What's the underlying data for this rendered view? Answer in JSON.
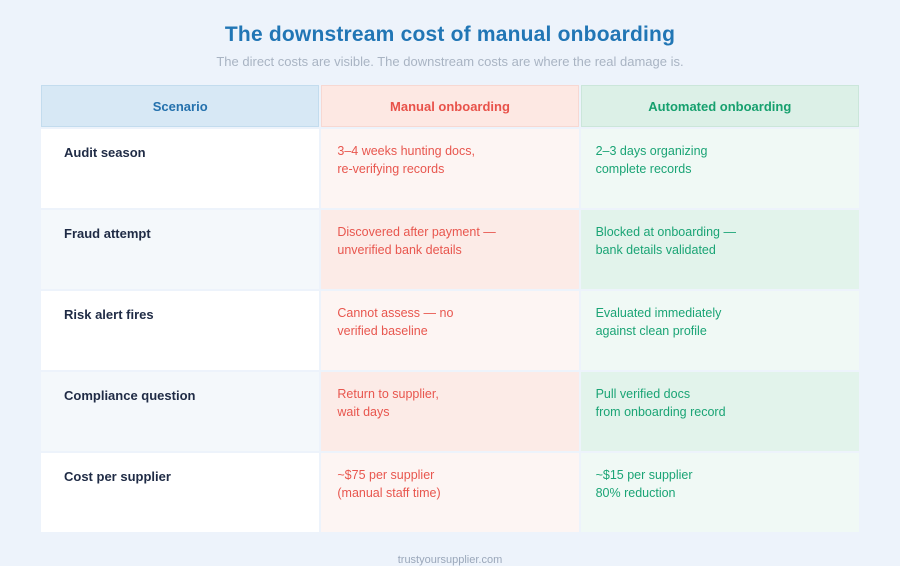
{
  "chart_data": {
    "type": "table",
    "title": "The downstream cost of manual onboarding",
    "subtitle": "The direct costs are visible. The downstream costs are where the real damage is.",
    "columns": [
      "Scenario",
      "Manual onboarding",
      "Automated onboarding"
    ],
    "rows": [
      {
        "scenario": "Audit season",
        "manual": [
          "3–4 weeks hunting docs,",
          "re-verifying records"
        ],
        "automated": [
          "2–3 days organizing",
          "complete records"
        ]
      },
      {
        "scenario": "Fraud attempt",
        "manual": [
          "Discovered after payment —",
          "unverified bank details"
        ],
        "automated": [
          "Blocked at onboarding —",
          "bank details validated"
        ]
      },
      {
        "scenario": "Risk alert fires",
        "manual": [
          "Cannot assess — no",
          "verified baseline"
        ],
        "automated": [
          "Evaluated immediately",
          "against clean profile"
        ]
      },
      {
        "scenario": "Compliance question",
        "manual": [
          "Return to supplier,",
          "wait days"
        ],
        "automated": [
          "Pull verified docs",
          "from onboarding record"
        ]
      },
      {
        "scenario": "Cost per supplier",
        "manual": [
          "~$75 per supplier",
          "(manual staff time)"
        ],
        "automated": [
          "~$15 per supplier",
          "80% reduction"
        ]
      }
    ],
    "layout": {
      "legend": "none",
      "grid": "cell-borders",
      "header_position": "top"
    }
  },
  "footer": {
    "text": "trustyoursupplier.com"
  },
  "colors": {
    "page_background": "#edf3fb",
    "title_blue": "#2176b5",
    "subtitle_gray": "#a9b4c3",
    "scenario_navy": "#1f2b45",
    "manual_red": "#e8524a",
    "automated_green": "#16a06e",
    "header_scenario_bg": "#d7e8f5",
    "header_manual_bg": "#fde8e3",
    "header_automated_bg": "#dcf0e7",
    "manual_cell_bg": "#fdf5f3",
    "manual_cell_bg_alt": "#fcebe7",
    "automated_cell_bg": "#f0f9f5",
    "automated_cell_bg_alt": "#e2f3eb"
  }
}
